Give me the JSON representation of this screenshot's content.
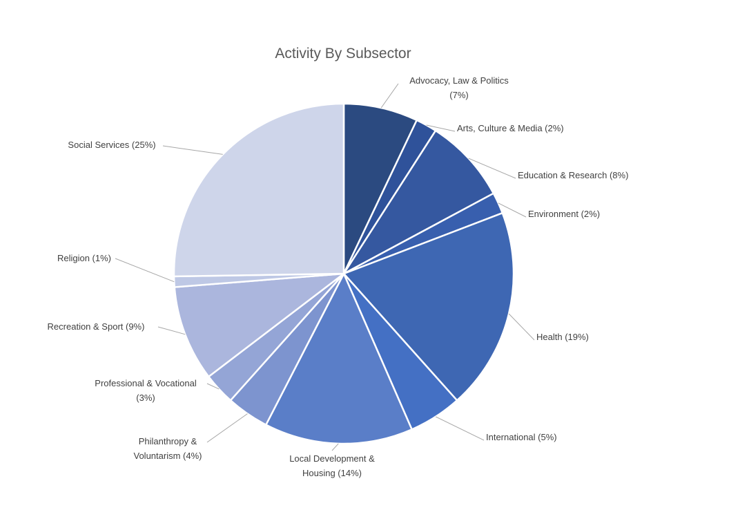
{
  "chart_data": {
    "type": "pie",
    "title": "Activity By Subsector",
    "slices": [
      {
        "name": "Advocacy, Law & Politics",
        "value": 7,
        "label_lines": [
          "Advocacy, Law & Politics",
          "(7%)"
        ],
        "color": "#2b4a80"
      },
      {
        "name": "Arts, Culture & Media",
        "value": 2,
        "label_lines": [
          "Arts, Culture & Media (2%)"
        ],
        "color": "#2f529a"
      },
      {
        "name": "Education & Research",
        "value": 8,
        "label_lines": [
          "Education & Research (8%)"
        ],
        "color": "#3558a0"
      },
      {
        "name": "Environment",
        "value": 2,
        "label_lines": [
          "Environment (2%)"
        ],
        "color": "#385fae"
      },
      {
        "name": "Health",
        "value": 19,
        "label_lines": [
          "Health (19%)"
        ],
        "color": "#3e67b3"
      },
      {
        "name": "International",
        "value": 5,
        "label_lines": [
          "International (5%)"
        ],
        "color": "#4470c4"
      },
      {
        "name": "Local Development & Housing",
        "value": 14,
        "label_lines": [
          "Local Development &",
          "Housing (14%)"
        ],
        "color": "#5a7ec8"
      },
      {
        "name": "Philanthropy & Voluntarism",
        "value": 4,
        "label_lines": [
          "Philanthropy &",
          "Voluntarism (4%)"
        ],
        "color": "#7d94cf"
      },
      {
        "name": "Professional & Vocational",
        "value": 3,
        "label_lines": [
          "Professional & Vocational",
          "(3%)"
        ],
        "color": "#94a5d6"
      },
      {
        "name": "Recreation & Sport",
        "value": 9,
        "label_lines": [
          "Recreation & Sport (9%)"
        ],
        "color": "#abb6dd"
      },
      {
        "name": "Religion",
        "value": 1,
        "label_lines": [
          "Religion (1%)"
        ],
        "color": "#bec8e5"
      },
      {
        "name": "Social Services",
        "value": 25,
        "label_lines": [
          "Social Services (25%)"
        ],
        "color": "#ced5ea"
      }
    ],
    "start_angle": "12 o'clock",
    "direction": "clockwise",
    "legend": "none (data labels with leader lines)"
  }
}
